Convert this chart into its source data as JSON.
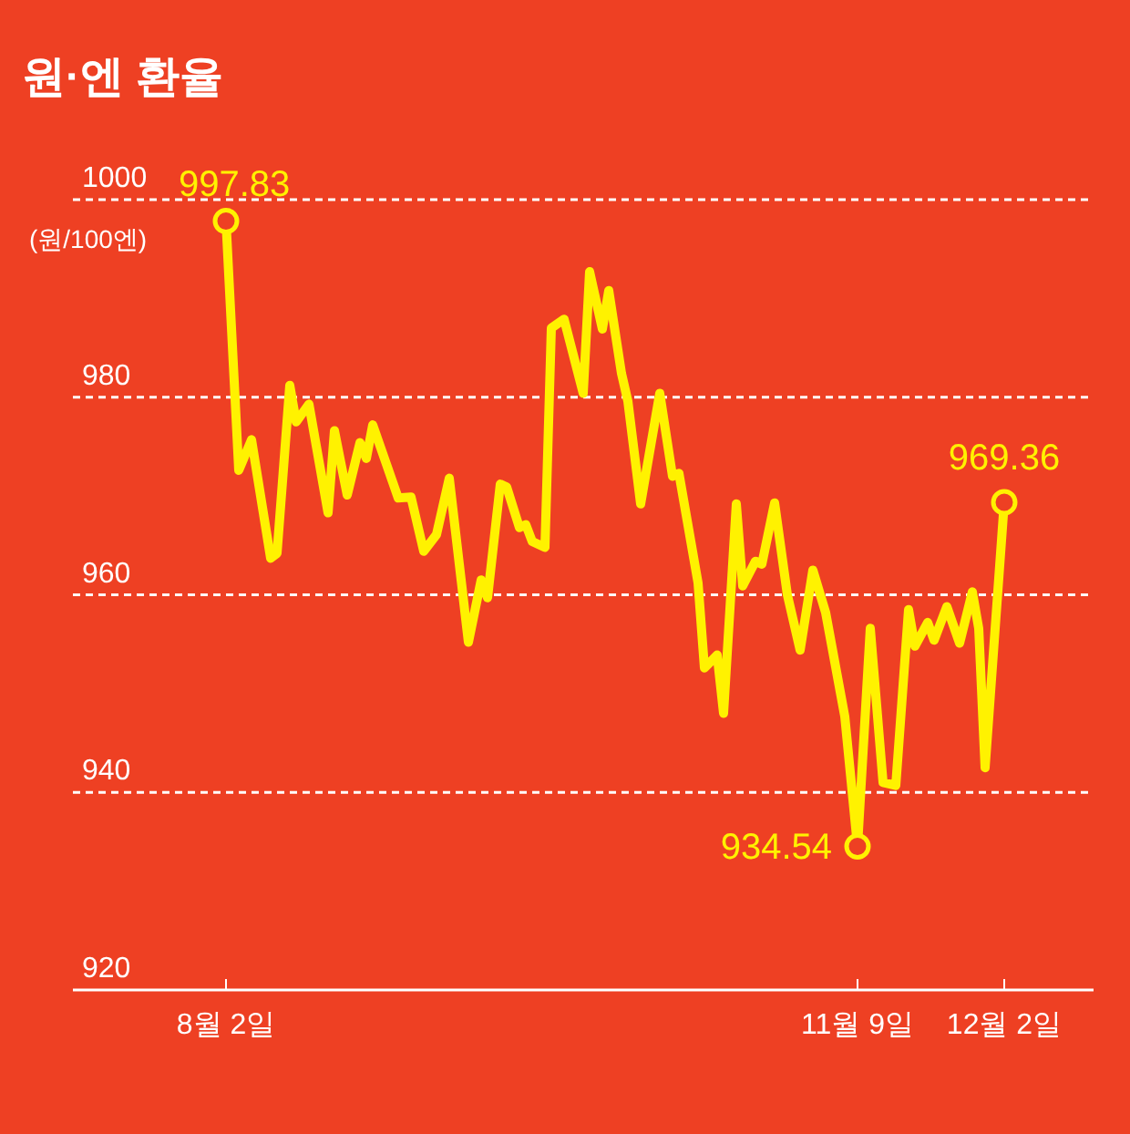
{
  "chart_data": {
    "type": "line",
    "title": "원·엔 환율",
    "ylabel": "(원/100엔)",
    "x": [
      "--08-02",
      "--08-04",
      "--08-06",
      "--08-09",
      "--08-10",
      "--08-12",
      "--08-13",
      "--08-15",
      "--08-18",
      "--08-19",
      "--08-21",
      "--08-23",
      "--08-24",
      "--08-25",
      "--08-29",
      "--08-31",
      "--09-02",
      "--09-04",
      "--09-06",
      "--09-09",
      "--09-11",
      "--09-12",
      "--09-14",
      "--09-15",
      "--09-17",
      "--09-18",
      "--09-19",
      "--09-21",
      "--09-22",
      "--09-24",
      "--09-27",
      "--09-28",
      "--09-30",
      "--10-01",
      "--10-03",
      "--10-04",
      "--10-06",
      "--10-09",
      "--10-11",
      "--10-12",
      "--10-14",
      "--10-15",
      "--10-16",
      "--10-18",
      "--10-19",
      "--10-21",
      "--10-22",
      "--10-24",
      "--10-25",
      "--10-27",
      "--10-29",
      "--10-31",
      "--11-02",
      "--11-04",
      "--11-07",
      "--11-09",
      "--11-11",
      "--11-13",
      "--11-15",
      "--11-17",
      "--11-18",
      "--11-20",
      "--11-21",
      "--11-23",
      "--11-25",
      "--11-27",
      "--11-28",
      "--11-29",
      "--12-02"
    ],
    "series": [
      {
        "color": "#fff200",
        "values": [
          997.83,
          972.6,
          975.7,
          963.7,
          964.2,
          981.2,
          977.5,
          979.3,
          968.3,
          976.6,
          970.1,
          975.4,
          973.8,
          977.2,
          969.8,
          969.9,
          964.4,
          966.1,
          971.8,
          955.2,
          961.5,
          959.7,
          971.2,
          970.9,
          966.8,
          967.1,
          965.4,
          964.8,
          987.0,
          987.9,
          980.4,
          992.7,
          986.9,
          990.8,
          982.4,
          979.6,
          969.2,
          980.4,
          972.0,
          972.3,
          964.9,
          961.2,
          952.6,
          953.9,
          948.0,
          969.2,
          960.9,
          963.4,
          963.1,
          969.3,
          960.0,
          954.4,
          962.5,
          958.2,
          947.7,
          934.54,
          956.6,
          941.0,
          940.7,
          958.5,
          954.8,
          957.2,
          955.4,
          958.8,
          955.1,
          960.3,
          956.6,
          942.5,
          969.36
        ]
      }
    ],
    "xlim": [
      "--07-09",
      "--12-16"
    ],
    "xticks": [
      {
        "value": "--08-02",
        "label": "8월 2일"
      },
      {
        "value": "--11-09",
        "label": "11월 9일"
      },
      {
        "value": "--12-02",
        "label": "12월 2일"
      }
    ],
    "ylim": [
      920,
      1000
    ],
    "yticks": [
      920,
      940,
      960,
      980,
      1000
    ],
    "grid": "y",
    "line_style": "solid",
    "annotations": [
      {
        "text": "997.83",
        "x": "--08-02",
        "y": 997.83
      },
      {
        "text": "934.54",
        "x": "--11-09",
        "y": 934.54
      },
      {
        "text": "969.36",
        "x": "--12-02",
        "y": 969.36
      }
    ]
  }
}
